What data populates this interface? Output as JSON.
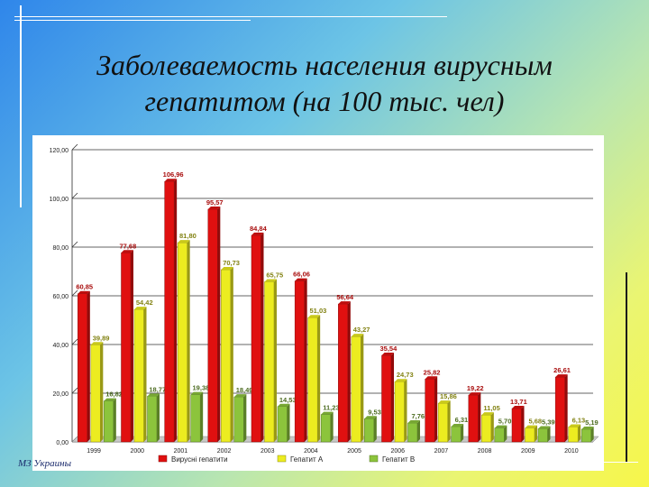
{
  "slide": {
    "title_line1": "Заболеваемость населения вирусным",
    "title_line2": "гепатитом (на 100 тыс. чел)",
    "footer": "МЗ Украины"
  },
  "colors": {
    "series": [
      "#e01010",
      "#ecec20",
      "#8cc43c"
    ]
  },
  "chart_data": {
    "type": "bar",
    "title": "",
    "xlabel": "",
    "ylabel": "",
    "ylim": [
      0,
      120
    ],
    "yticks": [
      "0,00",
      "20,00",
      "40,00",
      "60,00",
      "80,00",
      "100,00",
      "120,00"
    ],
    "grid": true,
    "legend_position": "bottom",
    "categories": [
      "1999",
      "2000",
      "2001",
      "2002",
      "2003",
      "2004",
      "2005",
      "2006",
      "2007",
      "2008",
      "2009",
      "2010"
    ],
    "series": [
      {
        "name": "Вирусні гепатити",
        "values": [
          60.85,
          77.68,
          106.96,
          95.57,
          84.84,
          66.06,
          56.64,
          35.54,
          25.82,
          19.22,
          13.71,
          26.61
        ],
        "labels": [
          "60,85",
          "77,68",
          "106,96",
          "95,57",
          "84,84",
          "66,06",
          "56,64",
          "35,54",
          "25,82",
          "19,22",
          "13,71",
          "26,61"
        ]
      },
      {
        "name": "Гепатит А",
        "values": [
          39.89,
          54.42,
          81.8,
          70.73,
          65.75,
          51.03,
          43.27,
          24.73,
          15.86,
          11.05,
          5.68,
          6.13
        ],
        "labels": [
          "39,89",
          "54,42",
          "81,80",
          "70,73",
          "65,75",
          "51,03",
          "43,27",
          "24,73",
          "15,86",
          "11,05",
          "5,68",
          "6,13"
        ]
      },
      {
        "name": "Гепатит В",
        "values": [
          16.82,
          18.77,
          19.38,
          18.49,
          14.53,
          11.23,
          9.53,
          7.76,
          6.31,
          5.7,
          5.39,
          5.19
        ],
        "labels": [
          "16,82",
          "18,77",
          "19,38",
          "18,49",
          "14,53",
          "11,23",
          "9,53",
          "7,76",
          "6,31",
          "5,70",
          "5,39",
          "5,19"
        ]
      }
    ]
  }
}
